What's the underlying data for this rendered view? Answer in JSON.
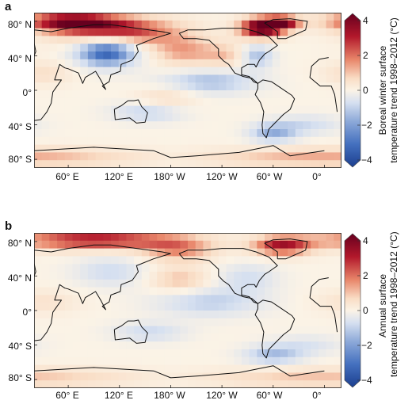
{
  "panels": [
    {
      "letter": "a",
      "cbar_title_line1": "Boreal winter surface",
      "cbar_title_line2": "temperature trend 1998–2012 (°C)"
    },
    {
      "letter": "b",
      "cbar_title_line1": "Annual surface",
      "cbar_title_line2": "temperature trend 1998–2012 (°C)"
    }
  ],
  "lat_labels": [
    "80° N",
    "40° N",
    "0°",
    "40° S",
    "80° S"
  ],
  "lon_labels": [
    "60° E",
    "120° E",
    "180° W",
    "120° W",
    "60° W",
    "0°"
  ],
  "colorbar_ticks": [
    "4",
    "2",
    "0",
    "−2",
    "−4"
  ],
  "colorbar_range": [
    -4,
    4
  ],
  "colors": {
    "strong_warm": "#67001f",
    "warm": "#d6604d",
    "light_warm": "#f4a582",
    "neutral": "#fbf3e6",
    "light_cool": "#b8c9e8",
    "cool": "#4f76c2",
    "strong_cool": "#2c4a9c"
  }
}
